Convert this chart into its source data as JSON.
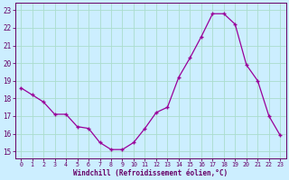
{
  "x": [
    0,
    1,
    2,
    3,
    4,
    5,
    6,
    7,
    8,
    9,
    10,
    11,
    12,
    13,
    14,
    15,
    16,
    17,
    18,
    19,
    20,
    21,
    22,
    23
  ],
  "y": [
    18.6,
    18.2,
    17.8,
    17.1,
    17.1,
    16.4,
    16.3,
    15.5,
    15.1,
    15.1,
    15.5,
    16.3,
    17.2,
    17.5,
    19.2,
    20.3,
    21.5,
    22.8,
    22.8,
    22.2,
    19.9,
    19.0,
    17.0,
    15.9
  ],
  "line_color": "#990099",
  "marker_color": "#990099",
  "bg_color": "#cceeff",
  "grid_color": "#aaddcc",
  "axis_color": "#660066",
  "xlabel": "Windchill (Refroidissement éolien,°C)",
  "yticks": [
    15,
    16,
    17,
    18,
    19,
    20,
    21,
    22,
    23
  ],
  "xticks": [
    0,
    1,
    2,
    3,
    4,
    5,
    6,
    7,
    8,
    9,
    10,
    11,
    12,
    13,
    14,
    15,
    16,
    17,
    18,
    19,
    20,
    21,
    22,
    23
  ],
  "ylim": [
    14.6,
    23.4
  ],
  "xlim": [
    -0.5,
    23.5
  ],
  "figsize": [
    3.2,
    2.0
  ],
  "dpi": 100
}
